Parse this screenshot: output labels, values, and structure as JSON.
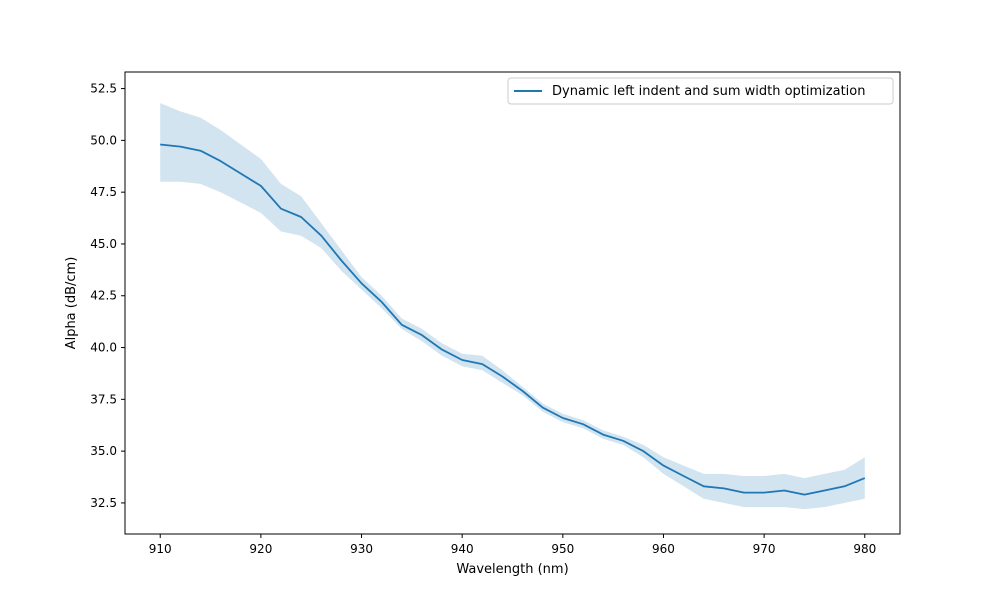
{
  "chart_data": {
    "type": "line",
    "title": "",
    "xlabel": "Wavelength (nm)",
    "ylabel": "Alpha (dB/cm)",
    "xlim": [
      906.5,
      983.5
    ],
    "ylim": [
      31.0,
      53.3
    ],
    "xticks": [
      910,
      920,
      930,
      940,
      950,
      960,
      970,
      980
    ],
    "xtick_labels": [
      "910",
      "920",
      "930",
      "940",
      "950",
      "960",
      "970",
      "980"
    ],
    "yticks": [
      32.5,
      35.0,
      37.5,
      40.0,
      42.5,
      45.0,
      47.5,
      50.0,
      52.5
    ],
    "ytick_labels": [
      "32.5",
      "35.0",
      "37.5",
      "40.0",
      "42.5",
      "45.0",
      "47.5",
      "50.0",
      "52.5"
    ],
    "grid": false,
    "legend_position": "top-right",
    "series": [
      {
        "name": "Dynamic left indent and sum width optimization",
        "color": "#1f77b4",
        "band_color": "#1f77b4",
        "x": [
          910,
          912,
          914,
          916,
          918,
          920,
          922,
          924,
          926,
          928,
          930,
          932,
          934,
          936,
          938,
          940,
          942,
          944,
          946,
          948,
          950,
          952,
          954,
          956,
          958,
          960,
          962,
          964,
          966,
          968,
          970,
          972,
          974,
          976,
          978,
          980
        ],
        "y": [
          49.8,
          49.7,
          49.5,
          49.0,
          48.4,
          47.8,
          46.7,
          46.3,
          45.4,
          44.2,
          43.1,
          42.2,
          41.1,
          40.6,
          39.9,
          39.4,
          39.2,
          38.6,
          37.9,
          37.1,
          36.6,
          36.3,
          35.8,
          35.5,
          35.0,
          34.3,
          33.8,
          33.3,
          33.2,
          33.0,
          33.0,
          33.1,
          32.9,
          33.1,
          33.3,
          33.7
        ],
        "lower": [
          48.0,
          48.0,
          47.9,
          47.5,
          47.0,
          46.5,
          45.6,
          45.4,
          44.8,
          43.7,
          42.8,
          41.9,
          40.9,
          40.3,
          39.6,
          39.1,
          38.9,
          38.3,
          37.7,
          36.9,
          36.4,
          36.1,
          35.6,
          35.3,
          34.7,
          33.9,
          33.3,
          32.7,
          32.5,
          32.3,
          32.3,
          32.3,
          32.2,
          32.3,
          32.5,
          32.7
        ],
        "upper": [
          51.8,
          51.4,
          51.1,
          50.5,
          49.8,
          49.1,
          47.9,
          47.3,
          46.0,
          44.7,
          43.4,
          42.5,
          41.4,
          40.9,
          40.2,
          39.7,
          39.6,
          38.9,
          38.1,
          37.3,
          36.8,
          36.5,
          36.0,
          35.7,
          35.3,
          34.7,
          34.3,
          33.9,
          33.9,
          33.8,
          33.8,
          33.9,
          33.7,
          33.9,
          34.1,
          34.7
        ]
      }
    ]
  }
}
